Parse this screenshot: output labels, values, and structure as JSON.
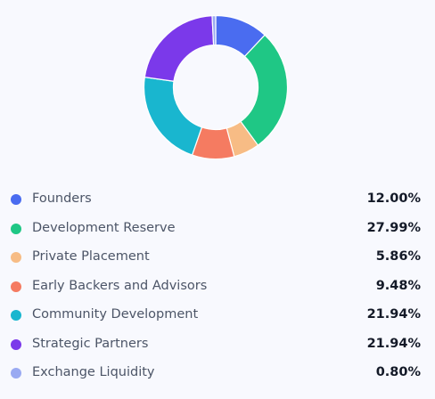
{
  "chart_data": {
    "type": "pie",
    "donut": true,
    "legend_position": "bottom",
    "categories": [
      "Founders",
      "Development Reserve",
      "Private Placement",
      "Early Backers and Advisors",
      "Community Development",
      "Strategic Partners",
      "Exchange Liquidity"
    ],
    "values": [
      12.0,
      27.99,
      5.86,
      9.48,
      21.94,
      21.94,
      0.8
    ],
    "value_labels": [
      "12.00%",
      "27.99%",
      "5.86%",
      "9.48%",
      "21.94%",
      "21.94%",
      "0.80%"
    ],
    "colors": [
      "#4a6cf0",
      "#1fc785",
      "#f7bc85",
      "#f57b61",
      "#19b6cf",
      "#7b39ea",
      "#9aaaf2"
    ]
  }
}
